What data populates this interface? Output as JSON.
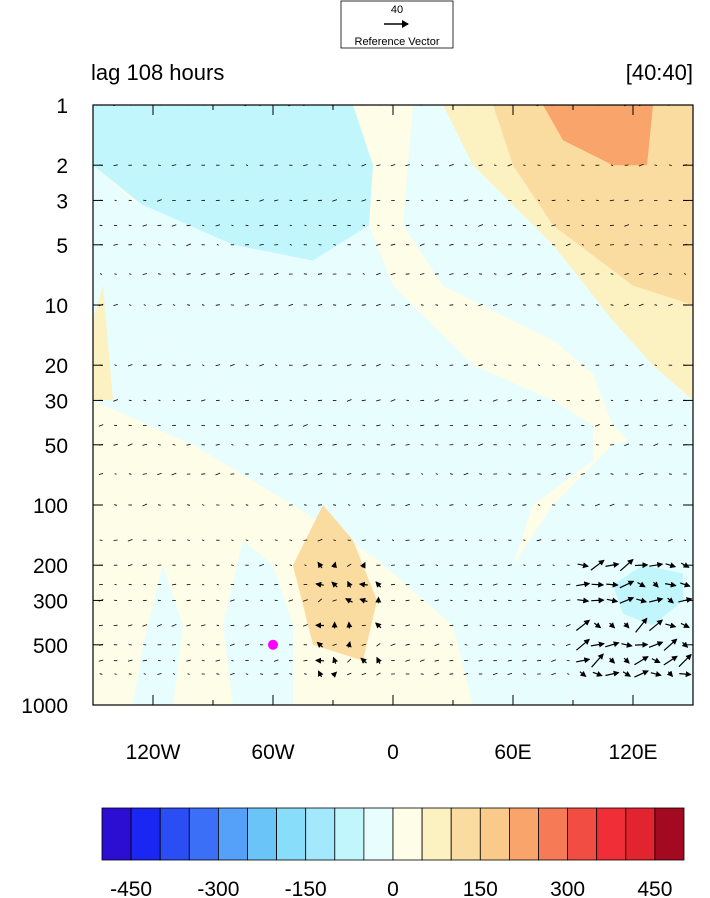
{
  "chart_data": {
    "type": "heatmap",
    "title_left": "lag 108 hours",
    "title_right": "[40:40]",
    "xlabel": "",
    "ylabel": "",
    "x_range": [
      -150,
      150
    ],
    "y_range": [
      1,
      1000
    ],
    "y_scale": "log",
    "y_reversed": true,
    "x_ticks": [
      {
        "value": -120,
        "label": "120W"
      },
      {
        "value": -60,
        "label": "60W"
      },
      {
        "value": 0,
        "label": "0"
      },
      {
        "value": 60,
        "label": "60E"
      },
      {
        "value": 120,
        "label": "120E"
      }
    ],
    "y_ticks": [
      {
        "value": 1,
        "label": "1"
      },
      {
        "value": 2,
        "label": "2"
      },
      {
        "value": 3,
        "label": "3"
      },
      {
        "value": 5,
        "label": "5"
      },
      {
        "value": 10,
        "label": "10"
      },
      {
        "value": 20,
        "label": "20"
      },
      {
        "value": 30,
        "label": "30"
      },
      {
        "value": 50,
        "label": "50"
      },
      {
        "value": 100,
        "label": "100"
      },
      {
        "value": 200,
        "label": "200"
      },
      {
        "value": 300,
        "label": "300"
      },
      {
        "value": 500,
        "label": "500"
      },
      {
        "value": 1000,
        "label": "1000"
      }
    ],
    "colorbar": {
      "levels": [
        -500,
        -450,
        -400,
        -350,
        -300,
        -250,
        -200,
        -150,
        -100,
        -50,
        0,
        50,
        100,
        150,
        200,
        250,
        300,
        350,
        400,
        450,
        500
      ],
      "colors": [
        "#2b0ed1",
        "#1a26f1",
        "#2a4df4",
        "#3b6ff8",
        "#55a0f8",
        "#6bc4f8",
        "#88ddfa",
        "#a3e8fc",
        "#c2f6fd",
        "#e8fdfd",
        "#fefde8",
        "#fcf1c1",
        "#fbdca0",
        "#f9ca8a",
        "#f8a46b",
        "#f67a55",
        "#f24d43",
        "#ef2e38",
        "#e22431",
        "#a30a22"
      ],
      "labels": [
        {
          "value": -450,
          "label": "-450"
        },
        {
          "value": -300,
          "label": "-300"
        },
        {
          "value": -150,
          "label": "-150"
        },
        {
          "value": 0,
          "label": "0"
        },
        {
          "value": 150,
          "label": "150"
        },
        {
          "value": 300,
          "label": "300"
        },
        {
          "value": 450,
          "label": "450"
        }
      ]
    },
    "reference_vector": {
      "magnitude_label": "40",
      "label": "Reference Vector"
    },
    "marker": {
      "lon": -60,
      "p": 500,
      "color": "#ff00ff"
    },
    "anomaly_regions": [
      {
        "level": -100,
        "points": [
          [
            -150,
            1
          ],
          [
            -20,
            1
          ],
          [
            -10,
            2
          ],
          [
            -12,
            4
          ],
          [
            -40,
            6
          ],
          [
            -80,
            5
          ],
          [
            -120,
            3.5
          ],
          [
            -150,
            2
          ]
        ]
      },
      {
        "level": -50,
        "points": [
          [
            -150,
            1
          ],
          [
            10,
            1
          ],
          [
            5,
            4
          ],
          [
            25,
            8
          ],
          [
            60,
            12
          ],
          [
            80,
            15
          ],
          [
            100,
            22
          ],
          [
            110,
            40
          ],
          [
            150,
            100
          ],
          [
            150,
            1
          ]
        ]
      },
      {
        "level": -50,
        "points": [
          [
            60,
            200
          ],
          [
            80,
            100
          ],
          [
            110,
            50
          ],
          [
            150,
            40
          ],
          [
            150,
            1000
          ],
          [
            60,
            1000
          ],
          [
            70,
            400
          ]
        ]
      },
      {
        "level": -50,
        "points": [
          [
            -150,
            2
          ],
          [
            -130,
            3
          ],
          [
            -80,
            5
          ],
          [
            -40,
            6
          ],
          [
            -12,
            4
          ],
          [
            0,
            8
          ],
          [
            40,
            20
          ],
          [
            80,
            30
          ],
          [
            100,
            40
          ],
          [
            100,
            60
          ],
          [
            70,
            100
          ],
          [
            60,
            200
          ],
          [
            40,
            300
          ],
          [
            -70,
            30
          ],
          [
            -120,
            15
          ],
          [
            -150,
            8
          ]
        ]
      },
      {
        "level": -50,
        "points": [
          [
            -150,
            8
          ],
          [
            -120,
            15
          ],
          [
            -70,
            30
          ],
          [
            40,
            300
          ],
          [
            60,
            200
          ],
          [
            70,
            400
          ],
          [
            60,
            1000
          ],
          [
            40,
            1000
          ],
          [
            30,
            400
          ],
          [
            -10,
            180
          ],
          [
            -50,
            100
          ],
          [
            -100,
            50
          ],
          [
            -150,
            30
          ]
        ]
      },
      {
        "level": -100,
        "points": [
          [
            110,
            250
          ],
          [
            125,
            200
          ],
          [
            145,
            220
          ],
          [
            145,
            300
          ],
          [
            130,
            400
          ],
          [
            115,
            350
          ]
        ]
      },
      {
        "level": -50,
        "points": [
          [
            -115,
            200
          ],
          [
            -105,
            400
          ],
          [
            -110,
            1000
          ],
          [
            -130,
            1000
          ],
          [
            -125,
            500
          ]
        ]
      },
      {
        "level": -50,
        "points": [
          [
            -75,
            150
          ],
          [
            -60,
            200
          ],
          [
            -50,
            400
          ],
          [
            -50,
            1000
          ],
          [
            -80,
            1000
          ],
          [
            -85,
            400
          ]
        ]
      },
      {
        "level": 100,
        "points": [
          [
            -35,
            100
          ],
          [
            -20,
            150
          ],
          [
            -8,
            300
          ],
          [
            -15,
            600
          ],
          [
            -40,
            500
          ],
          [
            -50,
            200
          ]
        ]
      },
      {
        "level": 50,
        "points": [
          [
            -150,
            12
          ],
          [
            -145,
            8
          ],
          [
            -140,
            30
          ],
          [
            -150,
            30
          ]
        ]
      },
      {
        "level": 50,
        "points": [
          [
            25,
            1
          ],
          [
            60,
            1
          ],
          [
            100,
            3
          ],
          [
            150,
            5
          ],
          [
            150,
            30
          ],
          [
            130,
            20
          ],
          [
            110,
            12
          ],
          [
            80,
            5
          ],
          [
            40,
            2
          ]
        ]
      },
      {
        "level": 100,
        "points": [
          [
            50,
            1
          ],
          [
            150,
            1
          ],
          [
            150,
            10
          ],
          [
            120,
            8
          ],
          [
            80,
            4
          ],
          [
            60,
            2
          ]
        ]
      },
      {
        "level": 200,
        "points": [
          [
            75,
            1
          ],
          [
            130,
            1
          ],
          [
            127,
            2
          ],
          [
            110,
            2
          ],
          [
            85,
            1.5
          ]
        ]
      }
    ]
  }
}
